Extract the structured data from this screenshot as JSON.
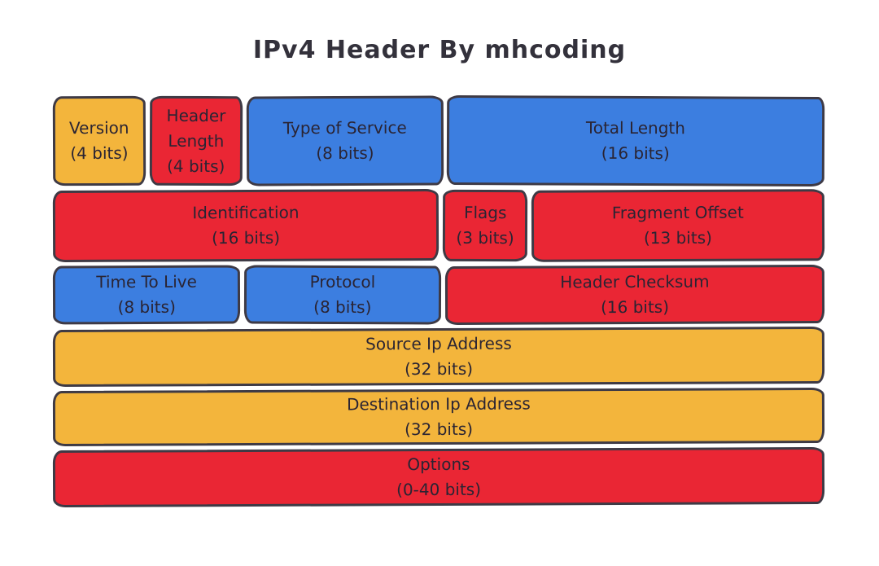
{
  "title": "IPv4 Header By mhcoding",
  "colors": {
    "yellow": "#f3b53c",
    "red": "#ea2634",
    "blue": "#3c7ee0",
    "outline": "#3e3a45",
    "text": "#2a2433"
  },
  "rows": [
    {
      "cells": [
        {
          "label": "Version",
          "bits": "(4 bits)",
          "color": "#f3b53c"
        },
        {
          "label": "Header Length",
          "bits": "(4 bits)",
          "color": "#ea2634"
        },
        {
          "label": "Type of Service",
          "bits": "(8 bits)",
          "color": "#3c7ee0"
        },
        {
          "label": "Total Length",
          "bits": "(16 bits)",
          "color": "#3c7ee0"
        }
      ]
    },
    {
      "cells": [
        {
          "label": "Identification",
          "bits": "(16 bits)",
          "color": "#ea2634"
        },
        {
          "label": "Flags",
          "bits": "(3 bits)",
          "color": "#ea2634"
        },
        {
          "label": "Fragment Offset",
          "bits": "(13 bits)",
          "color": "#ea2634"
        }
      ]
    },
    {
      "cells": [
        {
          "label": "Time To Live",
          "bits": "(8 bits)",
          "color": "#3c7ee0"
        },
        {
          "label": "Protocol",
          "bits": "(8 bits)",
          "color": "#3c7ee0"
        },
        {
          "label": "Header Checksum",
          "bits": "(16 bits)",
          "color": "#ea2634"
        }
      ]
    },
    {
      "cells": [
        {
          "label": "Source Ip Address",
          "bits": "(32 bits)",
          "color": "#f3b53c"
        }
      ]
    },
    {
      "cells": [
        {
          "label": "Destination Ip Address",
          "bits": "(32 bits)",
          "color": "#f3b53c"
        }
      ]
    },
    {
      "cells": [
        {
          "label": "Options",
          "bits": "(0-40 bits)",
          "color": "#ea2634"
        }
      ]
    }
  ]
}
